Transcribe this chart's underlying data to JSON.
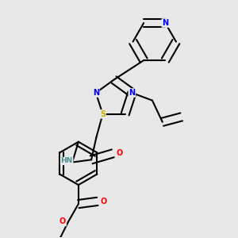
{
  "bg_color": "#e8e8e8",
  "atom_colors": {
    "N": "#0000ff",
    "O": "#ff0000",
    "S": "#ccaa00",
    "HN": "#4a9090",
    "C": "#000000"
  },
  "bond_color": "#000000",
  "bond_width": 1.5
}
